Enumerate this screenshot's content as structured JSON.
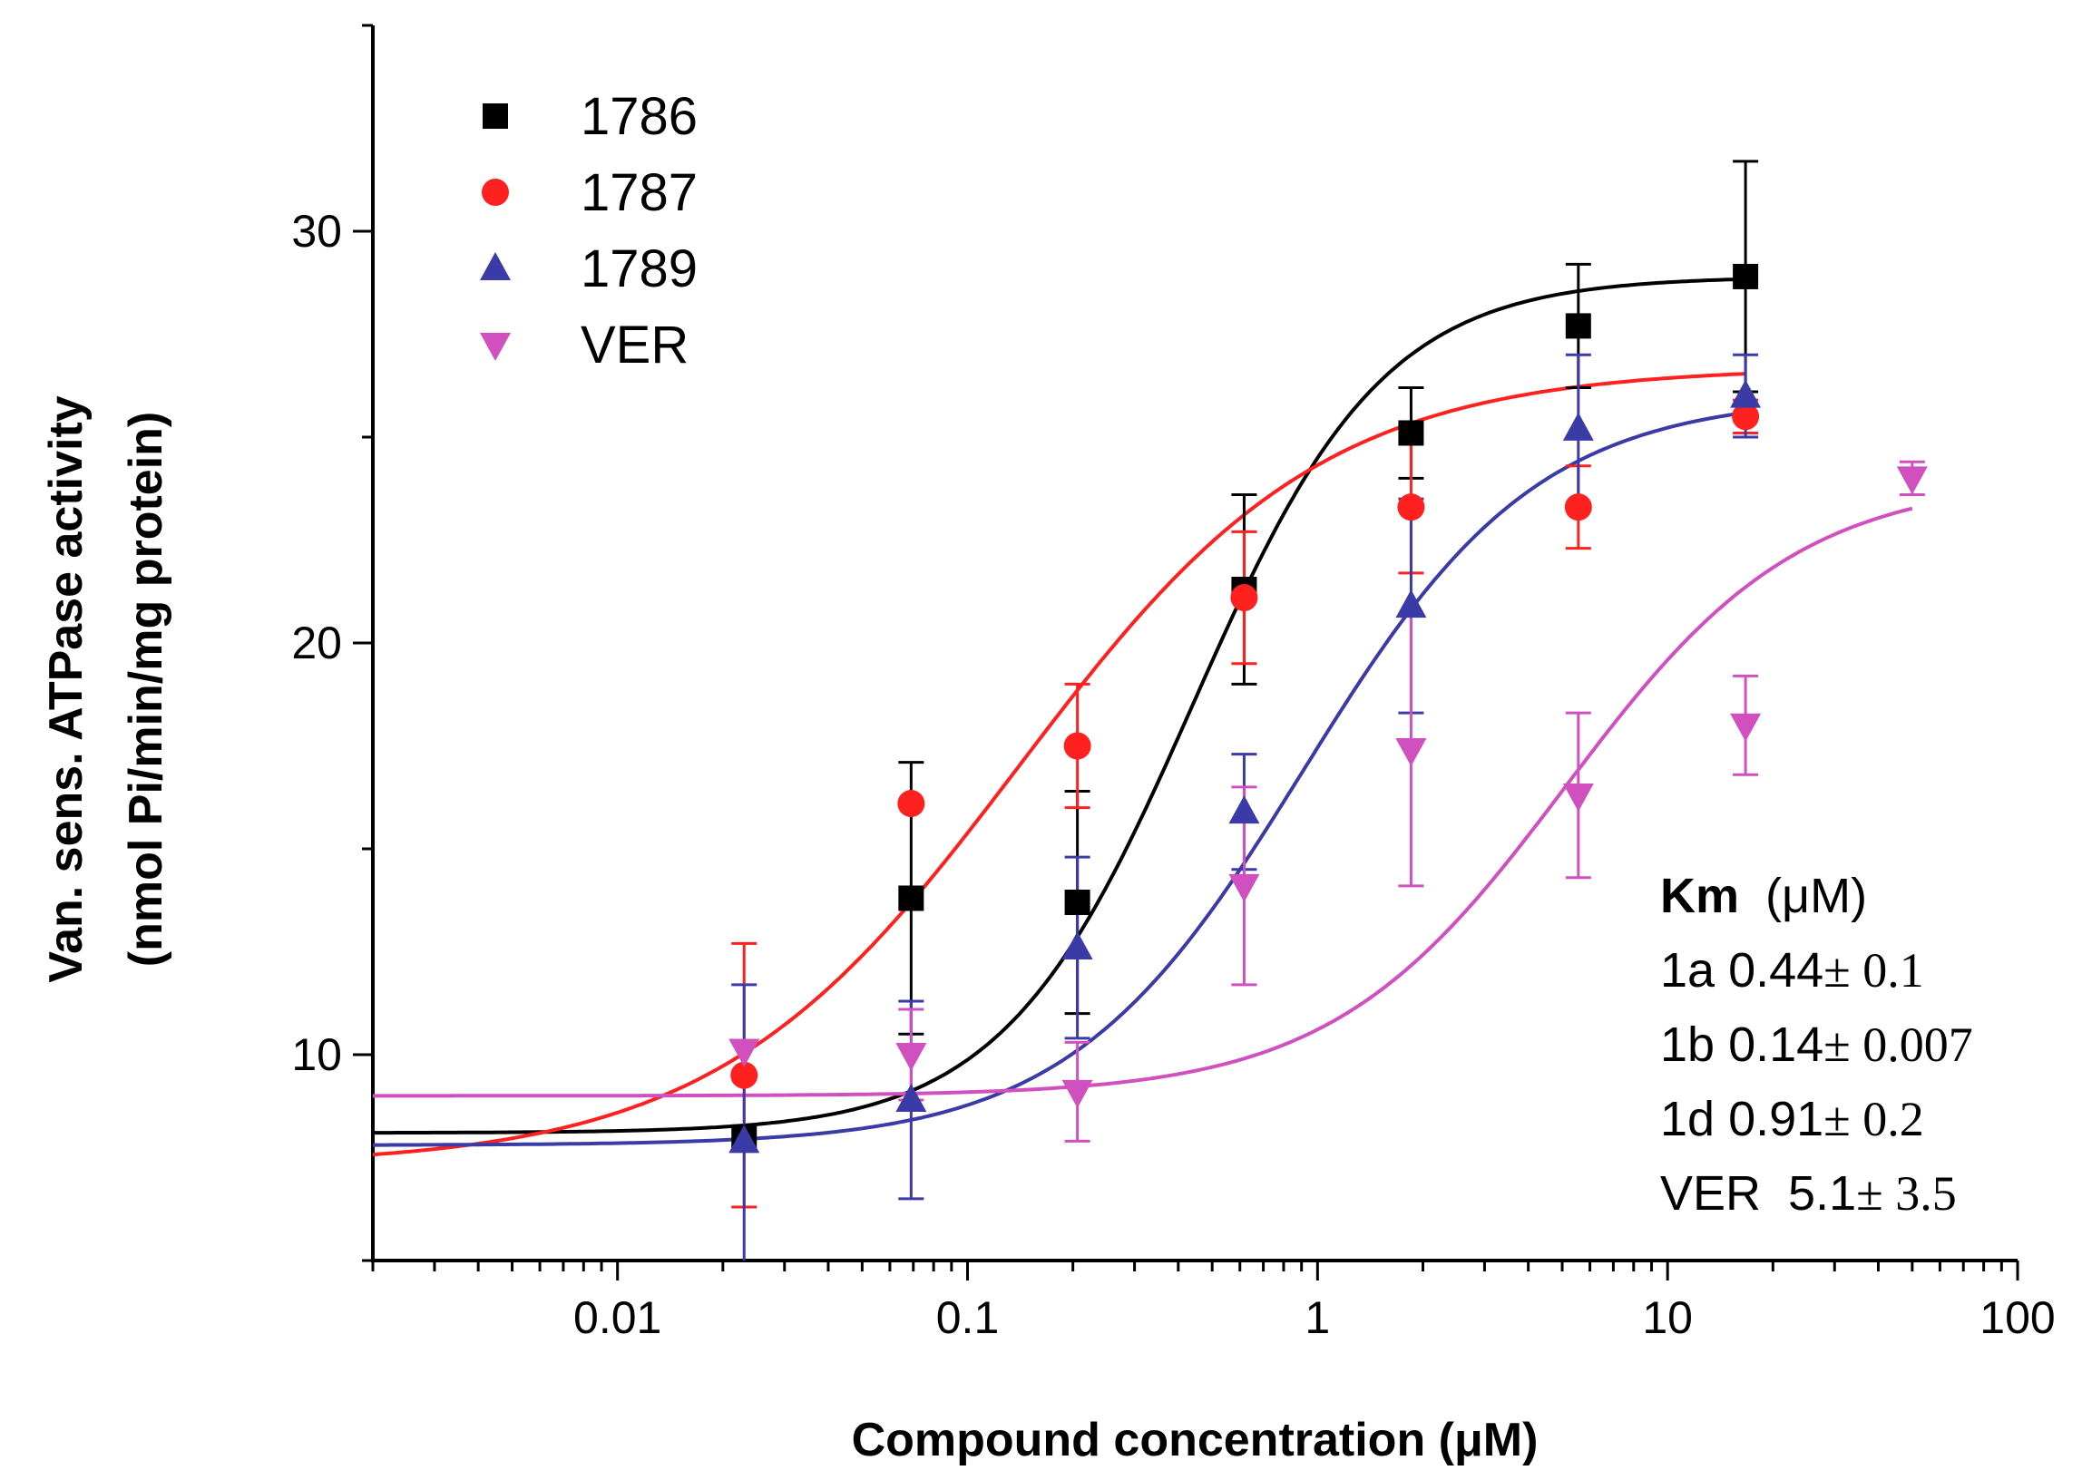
{
  "chart_data": {
    "type": "scatter",
    "xscale": "log",
    "xlim": [
      0.002,
      100
    ],
    "ylim": [
      5,
      35
    ],
    "xlabel": "Compound concentration (μM)",
    "ylabel_line1": "Van. sens. ATPase activity",
    "ylabel_line2": "(nmol Pi/min/mg protein)",
    "x_tick_labels": [
      "0.01",
      "0.1",
      "1",
      "10",
      "100"
    ],
    "x_tick_values": [
      0.01,
      0.1,
      1,
      10,
      100
    ],
    "y_tick_labels": [
      "10",
      "20",
      "30"
    ],
    "y_tick_values": [
      10,
      20,
      30
    ],
    "grid": false,
    "legend_position": "top-left",
    "series": [
      {
        "name": "1786",
        "color": "#000000",
        "marker": "square",
        "x": [
          0.023,
          0.069,
          0.206,
          0.617,
          1.85,
          5.56,
          16.7
        ],
        "y": [
          8.0,
          13.8,
          13.7,
          21.3,
          25.1,
          27.7,
          28.9
        ],
        "err": [
          0,
          3.3,
          2.7,
          2.3,
          1.1,
          1.5,
          2.8
        ],
        "fit": {
          "bottom": 8.1,
          "top": 28.9,
          "ec50": 0.44,
          "hill": 1.6
        }
      },
      {
        "name": "1787",
        "color": "#ff2020",
        "marker": "circle",
        "x": [
          0.023,
          0.069,
          0.206,
          0.617,
          1.85,
          5.56,
          16.7
        ],
        "y": [
          9.5,
          16.1,
          17.5,
          21.1,
          23.3,
          23.3,
          25.5
        ],
        "err": [
          3.2,
          0,
          1.5,
          1.6,
          1.6,
          1.0,
          0.4
        ],
        "fit": {
          "bottom": 7.3,
          "top": 26.7,
          "ec50": 0.14,
          "hill": 1.0
        }
      },
      {
        "name": "1789",
        "color": "#3b3ba8",
        "marker": "triangle-up",
        "x": [
          0.023,
          0.069,
          0.206,
          0.617,
          1.85,
          5.56,
          16.7
        ],
        "y": [
          7.9,
          8.9,
          12.6,
          15.9,
          20.9,
          25.2,
          26.0
        ],
        "err": [
          3.8,
          2.4,
          2.2,
          1.4,
          2.6,
          1.8,
          1.0
        ],
        "fit": {
          "bottom": 7.8,
          "top": 26.0,
          "ec50": 0.91,
          "hill": 1.3
        }
      },
      {
        "name": "VER",
        "color": "#d050c0",
        "marker": "triangle-down",
        "x": [
          0.023,
          0.069,
          0.206,
          0.617,
          1.85,
          5.56,
          16.7,
          50
        ],
        "y": [
          10.1,
          10.0,
          9.1,
          14.1,
          17.4,
          16.3,
          18.0,
          24.0
        ],
        "err": [
          0,
          1.1,
          1.2,
          2.4,
          3.3,
          2.0,
          1.2,
          0.4
        ],
        "fit": {
          "bottom": 9.0,
          "top": 24.0,
          "ec50": 5.1,
          "hill": 1.3
        }
      }
    ],
    "annotation": {
      "header_bold": "Km",
      "header_unit": "(μM)",
      "rows": [
        {
          "label": "1a 0.44",
          "value": "± 0.1"
        },
        {
          "label": "1b 0.14",
          "value": "± 0.007"
        },
        {
          "label": "1d 0.91",
          "value": "± 0.2"
        },
        {
          "label": "VER  5.1",
          "value": "± 3.5"
        }
      ]
    }
  }
}
